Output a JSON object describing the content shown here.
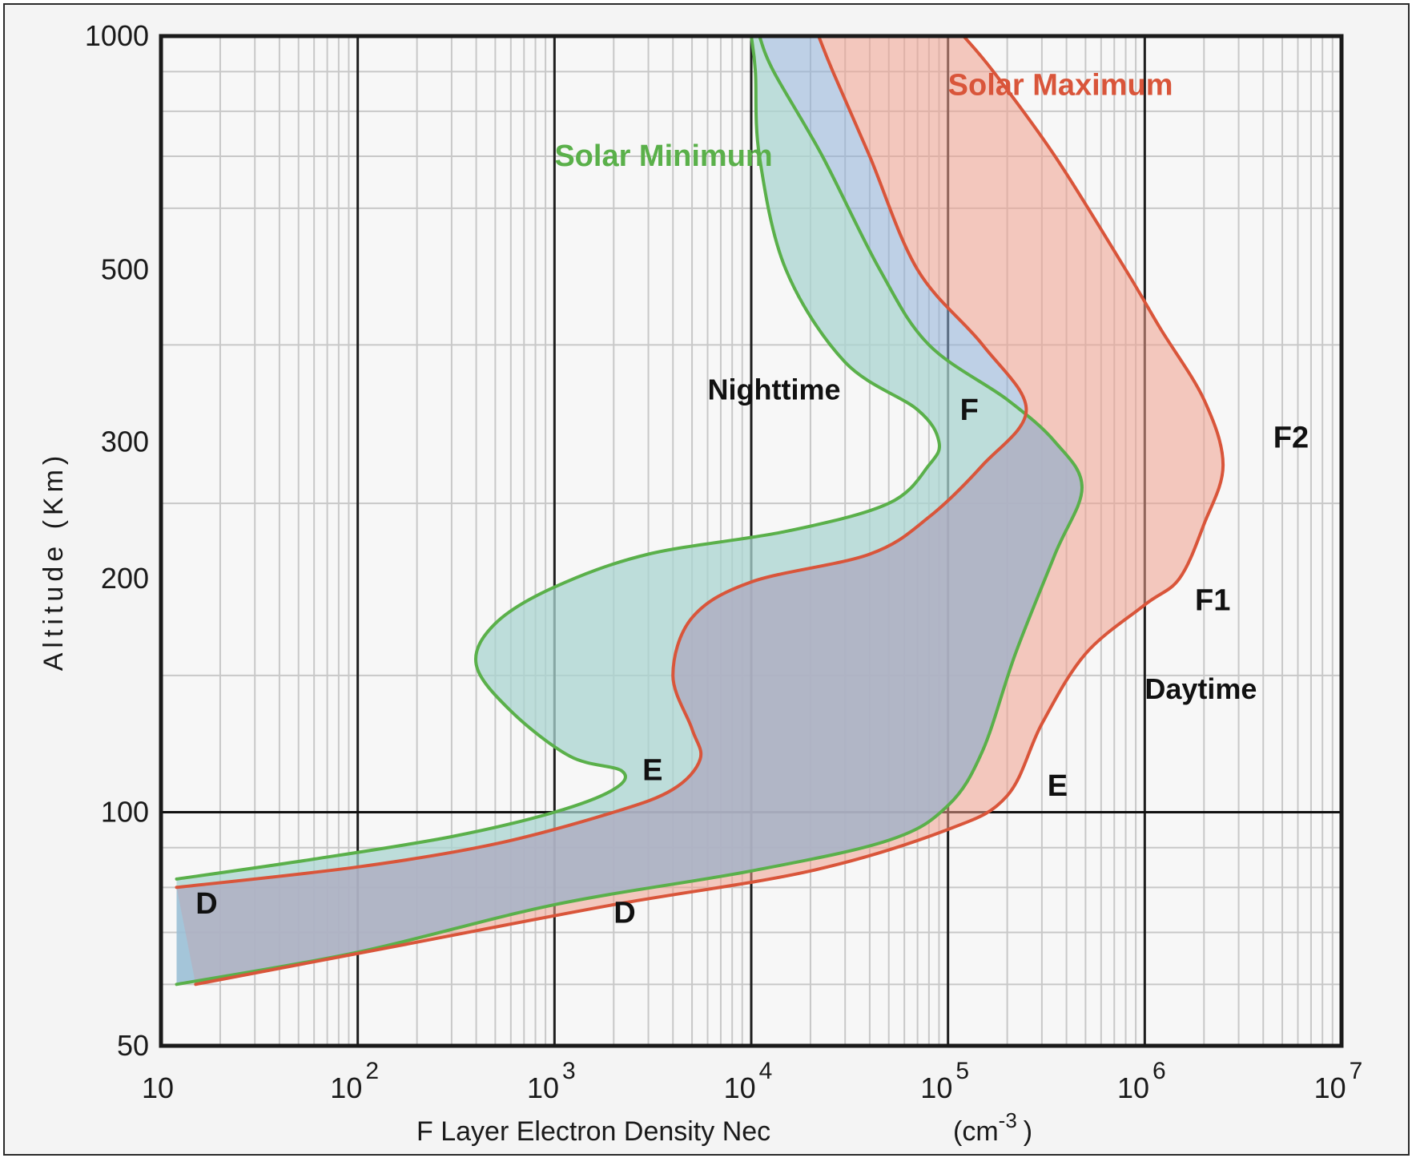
{
  "chart_data": {
    "type": "line",
    "title": "",
    "xlabel": "F Layer    Electron Density  Nec",
    "xlabel_unit": "(cm",
    "xlabel_unit_exp": "-3",
    "xlabel_unit_close": ")",
    "ylabel": "Altitude (Km)",
    "x_scale": "log",
    "y_scale": "log",
    "xlim": [
      10,
      10000000
    ],
    "ylim": [
      50,
      1000
    ],
    "grid": true,
    "x_ticks": [
      {
        "base": "10",
        "exp": ""
      },
      {
        "base": "10",
        "exp": "2"
      },
      {
        "base": "10",
        "exp": "3"
      },
      {
        "base": "10",
        "exp": "4"
      },
      {
        "base": "10",
        "exp": "5"
      },
      {
        "base": "10",
        "exp": "6"
      },
      {
        "base": "10",
        "exp": "7"
      }
    ],
    "y_ticks": [
      "50",
      "100",
      "200",
      "300",
      "500",
      "1000"
    ],
    "y_tick_values": [
      50,
      100,
      200,
      300,
      500,
      1000
    ],
    "colors": {
      "solar_minimum": "#5ab04a",
      "solar_maximum": "#d9553a",
      "fill_min": "#a9d4d0",
      "fill_max": "#f0a08e",
      "fill_core": "#8fb0d8"
    },
    "series": [
      {
        "name": "Solar Minimum",
        "color": "#5ab04a",
        "boundaries": [
          {
            "condition": "night",
            "points": [
              [
                12,
                82
              ],
              [
                60,
                87
              ],
              [
                300,
                93
              ],
              [
                1000,
                100
              ],
              [
                2000,
                107
              ],
              [
                2200,
                113
              ],
              [
                1200,
                118
              ],
              [
                600,
                135
              ],
              [
                400,
                155
              ],
              [
                500,
                175
              ],
              [
                1000,
                195
              ],
              [
                3000,
                215
              ],
              [
                15000,
                230
              ],
              [
                50000,
                250
              ],
              [
                80000,
                280
              ],
              [
                90000,
                300
              ],
              [
                70000,
                330
              ],
              [
                30000,
                380
              ],
              [
                15000,
                500
              ],
              [
                11000,
                700
              ],
              [
                10500,
                900
              ],
              [
                10000,
                1000
              ]
            ]
          },
          {
            "condition": "day",
            "points": [
              [
                12,
                60
              ],
              [
                100,
                66
              ],
              [
                1000,
                76
              ],
              [
                10000,
                84
              ],
              [
                50000,
                92
              ],
              [
                100000,
                102
              ],
              [
                150000,
                120
              ],
              [
                220000,
                160
              ],
              [
                350000,
                215
              ],
              [
                480000,
                262
              ],
              [
                350000,
                300
              ],
              [
                200000,
                340
              ],
              [
                80000,
                400
              ],
              [
                45000,
                500
              ],
              [
                23000,
                700
              ],
              [
                13000,
                900
              ],
              [
                11000,
                1000
              ]
            ]
          }
        ]
      },
      {
        "name": "Solar Maximum",
        "color": "#d9553a",
        "boundaries": [
          {
            "condition": "night",
            "points": [
              [
                12,
                80
              ],
              [
                100,
                85
              ],
              [
                500,
                91
              ],
              [
                2000,
                100
              ],
              [
                4000,
                107
              ],
              [
                5500,
                117
              ],
              [
                5000,
                128
              ],
              [
                4000,
                150
              ],
              [
                5000,
                178
              ],
              [
                10000,
                198
              ],
              [
                40000,
                215
              ],
              [
                80000,
                240
              ],
              [
                150000,
                280
              ],
              [
                250000,
                330
              ],
              [
                150000,
                400
              ],
              [
                70000,
                500
              ],
              [
                40000,
                700
              ],
              [
                26000,
                900
              ],
              [
                22000,
                1000
              ]
            ]
          },
          {
            "condition": "day",
            "points": [
              [
                15,
                60
              ],
              [
                200,
                68
              ],
              [
                2000,
                76
              ],
              [
                20000,
                84
              ],
              [
                100000,
                95
              ],
              [
                200000,
                105
              ],
              [
                300000,
                130
              ],
              [
                500000,
                160
              ],
              [
                1000000,
                185
              ],
              [
                1500000,
                200
              ],
              [
                2000000,
                235
              ],
              [
                2500000,
                280
              ],
              [
                2000000,
                340
              ],
              [
                1200000,
                420
              ],
              [
                800000,
                500
              ],
              [
                350000,
                700
              ],
              [
                170000,
                900
              ],
              [
                120000,
                1000
              ]
            ]
          }
        ]
      }
    ],
    "annotations": [
      {
        "id": "solar-maximum",
        "text": "Solar Maximum",
        "x": 100000,
        "y": 840
      },
      {
        "id": "solar-minimum",
        "text": "Solar Minimum",
        "x": 1000,
        "y": 680
      },
      {
        "id": "nighttime",
        "text": "Nighttime",
        "x": 6000,
        "y": 340
      },
      {
        "id": "daytime",
        "text": "Daytime",
        "x": 1000000,
        "y": 140
      },
      {
        "id": "f",
        "text": "F",
        "x": 115000,
        "y": 320
      },
      {
        "id": "f2",
        "text": "F2",
        "x": 4500000,
        "y": 295
      },
      {
        "id": "f1",
        "text": "F1",
        "x": 1800000,
        "y": 182
      },
      {
        "id": "e-night",
        "text": "E",
        "x": 2800,
        "y": 110
      },
      {
        "id": "e-day",
        "text": "E",
        "x": 320000,
        "y": 105
      },
      {
        "id": "d-left",
        "text": "D",
        "x": 15,
        "y": 74
      },
      {
        "id": "d-mid",
        "text": "D",
        "x": 2000,
        "y": 72
      }
    ]
  }
}
